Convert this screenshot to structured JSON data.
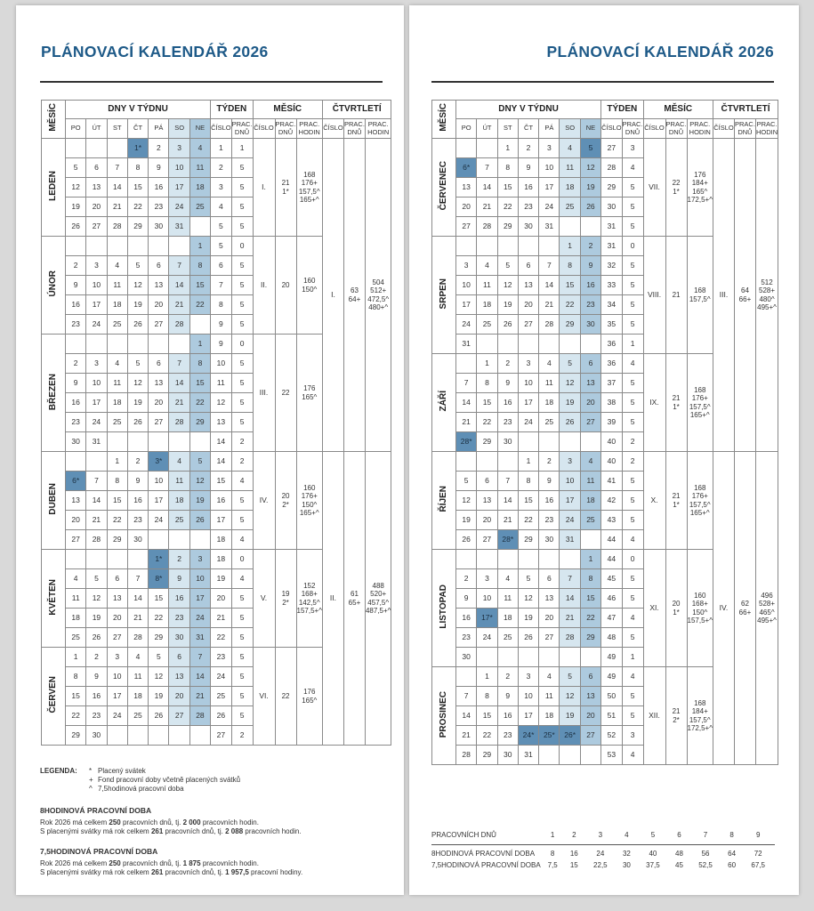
{
  "title": "PLÁNOVACÍ KALENDÁŘ 2026",
  "colors": {
    "title": "#1e5a88",
    "saturday": "#d6e6ef",
    "sunday": "#adcade",
    "holiday": "#5f8fb5"
  },
  "headers": {
    "month": "MĚSÍC",
    "days_of_week": "DNY V TÝDNU",
    "week": "TÝDEN",
    "month_group": "MĚSÍC",
    "quarter": "ČTVRTLETÍ",
    "weekdays": [
      "PO",
      "ÚT",
      "ST",
      "ČT",
      "PÁ",
      "SO",
      "NE"
    ],
    "number": "ČÍSLO",
    "work_days": "PRAC. DNŮ",
    "work_hours": "PRAC. HODIN"
  },
  "months": [
    {
      "name": "LEDEN",
      "number": "I.",
      "workdays": [
        "21",
        "1*"
      ],
      "hours": [
        "168",
        "176+",
        "157,5^",
        "165+^"
      ],
      "holidays": [
        "1*"
      ],
      "weeks": [
        {
          "days": [
            "",
            "",
            "",
            "1*",
            "2",
            "3",
            "4"
          ],
          "week": "1",
          "wd": "1"
        },
        {
          "days": [
            "5",
            "6",
            "7",
            "8",
            "9",
            "10",
            "11"
          ],
          "week": "2",
          "wd": "5"
        },
        {
          "days": [
            "12",
            "13",
            "14",
            "15",
            "16",
            "17",
            "18"
          ],
          "week": "3",
          "wd": "5"
        },
        {
          "days": [
            "19",
            "20",
            "21",
            "22",
            "23",
            "24",
            "25"
          ],
          "week": "4",
          "wd": "5"
        },
        {
          "days": [
            "26",
            "27",
            "28",
            "29",
            "30",
            "31",
            ""
          ],
          "week": "5",
          "wd": "5"
        }
      ]
    },
    {
      "name": "ÚNOR",
      "number": "II.",
      "workdays": [
        "20"
      ],
      "hours": [
        "160",
        "150^"
      ],
      "holidays": [],
      "weeks": [
        {
          "days": [
            "",
            "",
            "",
            "",
            "",
            "",
            "1"
          ],
          "week": "5",
          "wd": "0"
        },
        {
          "days": [
            "2",
            "3",
            "4",
            "5",
            "6",
            "7",
            "8"
          ],
          "week": "6",
          "wd": "5"
        },
        {
          "days": [
            "9",
            "10",
            "11",
            "12",
            "13",
            "14",
            "15"
          ],
          "week": "7",
          "wd": "5"
        },
        {
          "days": [
            "16",
            "17",
            "18",
            "19",
            "20",
            "21",
            "22"
          ],
          "week": "8",
          "wd": "5"
        },
        {
          "days": [
            "23",
            "24",
            "25",
            "26",
            "27",
            "28",
            ""
          ],
          "week": "9",
          "wd": "5"
        }
      ]
    },
    {
      "name": "BŘEZEN",
      "number": "III.",
      "workdays": [
        "22"
      ],
      "hours": [
        "176",
        "165^"
      ],
      "holidays": [],
      "weeks": [
        {
          "days": [
            "",
            "",
            "",
            "",
            "",
            "",
            "1"
          ],
          "week": "9",
          "wd": "0"
        },
        {
          "days": [
            "2",
            "3",
            "4",
            "5",
            "6",
            "7",
            "8"
          ],
          "week": "10",
          "wd": "5"
        },
        {
          "days": [
            "9",
            "10",
            "11",
            "12",
            "13",
            "14",
            "15"
          ],
          "week": "11",
          "wd": "5"
        },
        {
          "days": [
            "16",
            "17",
            "18",
            "19",
            "20",
            "21",
            "22"
          ],
          "week": "12",
          "wd": "5"
        },
        {
          "days": [
            "23",
            "24",
            "25",
            "26",
            "27",
            "28",
            "29"
          ],
          "week": "13",
          "wd": "5"
        },
        {
          "days": [
            "30",
            "31",
            "",
            "",
            "",
            "",
            ""
          ],
          "week": "14",
          "wd": "2"
        }
      ]
    },
    {
      "name": "DUBEN",
      "number": "IV.",
      "workdays": [
        "20",
        "2*"
      ],
      "hours": [
        "160",
        "176+",
        "150^",
        "165+^"
      ],
      "holidays": [
        "3*",
        "6*"
      ],
      "weeks": [
        {
          "days": [
            "",
            "",
            "1",
            "2",
            "3*",
            "4",
            "5"
          ],
          "week": "14",
          "wd": "2"
        },
        {
          "days": [
            "6*",
            "7",
            "8",
            "9",
            "10",
            "11",
            "12"
          ],
          "week": "15",
          "wd": "4"
        },
        {
          "days": [
            "13",
            "14",
            "15",
            "16",
            "17",
            "18",
            "19"
          ],
          "week": "16",
          "wd": "5"
        },
        {
          "days": [
            "20",
            "21",
            "22",
            "23",
            "24",
            "25",
            "26"
          ],
          "week": "17",
          "wd": "5"
        },
        {
          "days": [
            "27",
            "28",
            "29",
            "30",
            "",
            "",
            ""
          ],
          "week": "18",
          "wd": "4"
        }
      ]
    },
    {
      "name": "KVĚTEN",
      "number": "V.",
      "workdays": [
        "19",
        "2*"
      ],
      "hours": [
        "152",
        "168+",
        "142,5^",
        "157,5+^"
      ],
      "holidays": [
        "1*",
        "8*"
      ],
      "weeks": [
        {
          "days": [
            "",
            "",
            "",
            "",
            "1*",
            "2",
            "3"
          ],
          "week": "18",
          "wd": "0"
        },
        {
          "days": [
            "4",
            "5",
            "6",
            "7",
            "8*",
            "9",
            "10"
          ],
          "week": "19",
          "wd": "4"
        },
        {
          "days": [
            "11",
            "12",
            "13",
            "14",
            "15",
            "16",
            "17"
          ],
          "week": "20",
          "wd": "5"
        },
        {
          "days": [
            "18",
            "19",
            "20",
            "21",
            "22",
            "23",
            "24"
          ],
          "week": "21",
          "wd": "5"
        },
        {
          "days": [
            "25",
            "26",
            "27",
            "28",
            "29",
            "30",
            "31"
          ],
          "week": "22",
          "wd": "5"
        }
      ]
    },
    {
      "name": "ČERVEN",
      "number": "VI.",
      "workdays": [
        "22"
      ],
      "hours": [
        "176",
        "165^"
      ],
      "holidays": [],
      "weeks": [
        {
          "days": [
            "1",
            "2",
            "3",
            "4",
            "5",
            "6",
            "7"
          ],
          "week": "23",
          "wd": "5"
        },
        {
          "days": [
            "8",
            "9",
            "10",
            "11",
            "12",
            "13",
            "14"
          ],
          "week": "24",
          "wd": "5"
        },
        {
          "days": [
            "15",
            "16",
            "17",
            "18",
            "19",
            "20",
            "21"
          ],
          "week": "25",
          "wd": "5"
        },
        {
          "days": [
            "22",
            "23",
            "24",
            "25",
            "26",
            "27",
            "28"
          ],
          "week": "26",
          "wd": "5"
        },
        {
          "days": [
            "29",
            "30",
            "",
            "",
            "",
            "",
            ""
          ],
          "week": "27",
          "wd": "2"
        }
      ]
    },
    {
      "name": "ČERVENEC",
      "number": "VII.",
      "workdays": [
        "22",
        "1*"
      ],
      "hours": [
        "176",
        "184+",
        "165^",
        "172,5+^"
      ],
      "holidays": [
        "5",
        "6*"
      ],
      "weeks": [
        {
          "days": [
            "",
            "",
            "1",
            "2",
            "3",
            "4",
            "5"
          ],
          "week": "27",
          "wd": "3"
        },
        {
          "days": [
            "6*",
            "7",
            "8",
            "9",
            "10",
            "11",
            "12"
          ],
          "week": "28",
          "wd": "4"
        },
        {
          "days": [
            "13",
            "14",
            "15",
            "16",
            "17",
            "18",
            "19"
          ],
          "week": "29",
          "wd": "5"
        },
        {
          "days": [
            "20",
            "21",
            "22",
            "23",
            "24",
            "25",
            "26"
          ],
          "week": "30",
          "wd": "5"
        },
        {
          "days": [
            "27",
            "28",
            "29",
            "30",
            "31",
            "",
            ""
          ],
          "week": "31",
          "wd": "5"
        }
      ]
    },
    {
      "name": "SRPEN",
      "number": "VIII.",
      "workdays": [
        "21"
      ],
      "hours": [
        "168",
        "157,5^"
      ],
      "holidays": [],
      "weeks": [
        {
          "days": [
            "",
            "",
            "",
            "",
            "",
            "1",
            "2"
          ],
          "week": "31",
          "wd": "0"
        },
        {
          "days": [
            "3",
            "4",
            "5",
            "6",
            "7",
            "8",
            "9"
          ],
          "week": "32",
          "wd": "5"
        },
        {
          "days": [
            "10",
            "11",
            "12",
            "13",
            "14",
            "15",
            "16"
          ],
          "week": "33",
          "wd": "5"
        },
        {
          "days": [
            "17",
            "18",
            "19",
            "20",
            "21",
            "22",
            "23"
          ],
          "week": "34",
          "wd": "5"
        },
        {
          "days": [
            "24",
            "25",
            "26",
            "27",
            "28",
            "29",
            "30"
          ],
          "week": "35",
          "wd": "5"
        },
        {
          "days": [
            "31",
            "",
            "",
            "",
            "",
            "",
            ""
          ],
          "week": "36",
          "wd": "1"
        }
      ]
    },
    {
      "name": "ZÁŘÍ",
      "number": "IX.",
      "workdays": [
        "21",
        "1*"
      ],
      "hours": [
        "168",
        "176+",
        "157,5^",
        "165+^"
      ],
      "holidays": [
        "28*"
      ],
      "weeks": [
        {
          "days": [
            "",
            "1",
            "2",
            "3",
            "4",
            "5",
            "6"
          ],
          "week": "36",
          "wd": "4"
        },
        {
          "days": [
            "7",
            "8",
            "9",
            "10",
            "11",
            "12",
            "13"
          ],
          "week": "37",
          "wd": "5"
        },
        {
          "days": [
            "14",
            "15",
            "16",
            "17",
            "18",
            "19",
            "20"
          ],
          "week": "38",
          "wd": "5"
        },
        {
          "days": [
            "21",
            "22",
            "23",
            "24",
            "25",
            "26",
            "27"
          ],
          "week": "39",
          "wd": "5"
        },
        {
          "days": [
            "28*",
            "29",
            "30",
            "",
            "",
            "",
            ""
          ],
          "week": "40",
          "wd": "2"
        }
      ]
    },
    {
      "name": "ŘÍJEN",
      "number": "X.",
      "workdays": [
        "21",
        "1*"
      ],
      "hours": [
        "168",
        "176+",
        "157,5^",
        "165+^"
      ],
      "holidays": [
        "28*"
      ],
      "weeks": [
        {
          "days": [
            "",
            "",
            "",
            "1",
            "2",
            "3",
            "4"
          ],
          "week": "40",
          "wd": "2"
        },
        {
          "days": [
            "5",
            "6",
            "7",
            "8",
            "9",
            "10",
            "11"
          ],
          "week": "41",
          "wd": "5"
        },
        {
          "days": [
            "12",
            "13",
            "14",
            "15",
            "16",
            "17",
            "18"
          ],
          "week": "42",
          "wd": "5"
        },
        {
          "days": [
            "19",
            "20",
            "21",
            "22",
            "23",
            "24",
            "25"
          ],
          "week": "43",
          "wd": "5"
        },
        {
          "days": [
            "26",
            "27",
            "28*",
            "29",
            "30",
            "31",
            ""
          ],
          "week": "44",
          "wd": "4"
        }
      ]
    },
    {
      "name": "LISTOPAD",
      "number": "XI.",
      "workdays": [
        "20",
        "1*"
      ],
      "hours": [
        "160",
        "168+",
        "150^",
        "157,5+^"
      ],
      "holidays": [
        "17*"
      ],
      "weeks": [
        {
          "days": [
            "",
            "",
            "",
            "",
            "",
            "",
            "1"
          ],
          "week": "44",
          "wd": "0"
        },
        {
          "days": [
            "2",
            "3",
            "4",
            "5",
            "6",
            "7",
            "8"
          ],
          "week": "45",
          "wd": "5"
        },
        {
          "days": [
            "9",
            "10",
            "11",
            "12",
            "13",
            "14",
            "15"
          ],
          "week": "46",
          "wd": "5"
        },
        {
          "days": [
            "16",
            "17*",
            "18",
            "19",
            "20",
            "21",
            "22"
          ],
          "week": "47",
          "wd": "4"
        },
        {
          "days": [
            "23",
            "24",
            "25",
            "26",
            "27",
            "28",
            "29"
          ],
          "week": "48",
          "wd": "5"
        },
        {
          "days": [
            "30",
            "",
            "",
            "",
            "",
            "",
            ""
          ],
          "week": "49",
          "wd": "1"
        }
      ]
    },
    {
      "name": "PROSINEC",
      "number": "XII.",
      "workdays": [
        "21",
        "2*"
      ],
      "hours": [
        "168",
        "184+",
        "157,5^",
        "172,5+^"
      ],
      "holidays": [
        "24*",
        "25*",
        "26*"
      ],
      "weeks": [
        {
          "days": [
            "",
            "1",
            "2",
            "3",
            "4",
            "5",
            "6"
          ],
          "week": "49",
          "wd": "4"
        },
        {
          "days": [
            "7",
            "8",
            "9",
            "10",
            "11",
            "12",
            "13"
          ],
          "week": "50",
          "wd": "5"
        },
        {
          "days": [
            "14",
            "15",
            "16",
            "17",
            "18",
            "19",
            "20"
          ],
          "week": "51",
          "wd": "5"
        },
        {
          "days": [
            "21",
            "22",
            "23",
            "24*",
            "25*",
            "26*",
            "27"
          ],
          "week": "52",
          "wd": "3"
        },
        {
          "days": [
            "28",
            "29",
            "30",
            "31",
            "",
            "",
            ""
          ],
          "week": "53",
          "wd": "4"
        }
      ]
    }
  ],
  "quarters": [
    {
      "number": "I.",
      "workdays": [
        "63",
        "64+"
      ],
      "hours": [
        "504",
        "512+",
        "472,5^",
        "480+^"
      ]
    },
    {
      "number": "II.",
      "workdays": [
        "61",
        "65+"
      ],
      "hours": [
        "488",
        "520+",
        "457,5^",
        "487,5+^"
      ]
    },
    {
      "number": "III.",
      "workdays": [
        "64",
        "66+"
      ],
      "hours": [
        "512",
        "528+",
        "480^",
        "495+^"
      ]
    },
    {
      "number": "IV.",
      "workdays": [
        "62",
        "66+"
      ],
      "hours": [
        "496",
        "528+",
        "465^",
        "495+^"
      ]
    }
  ],
  "legend": {
    "label": "LEGENDA:",
    "items": [
      {
        "symbol": "*",
        "text": "Placený svátek"
      },
      {
        "symbol": "+",
        "text": "Fond pracovní doby včetně placených svátků"
      },
      {
        "symbol": "^",
        "text": "7,5hodinová pracovní doba"
      }
    ],
    "eight_hour": {
      "heading": "8HODINOVÁ PRACOVNÍ DOBA",
      "line1": [
        "Rok 2026 má celkem ",
        "250",
        " pracovních dnů, tj. ",
        "2 000",
        " pracovních hodin."
      ],
      "line2": [
        "S placenými svátky má rok celkem ",
        "261",
        " pracovních dnů, tj. ",
        "2 088",
        " pracovních hodin."
      ]
    },
    "seven_half_hour": {
      "heading": "7,5HODINOVÁ PRACOVNÍ DOBA",
      "line1": [
        "Rok 2026 má celkem ",
        "250",
        " pracovních dnů, tj. ",
        "1 875",
        " pracovních hodin."
      ],
      "line2": [
        "S placenými svátky má rok celkem ",
        "261",
        " pracovních dnů, tj. ",
        "1 957,5",
        " pracovní hodiny."
      ]
    }
  },
  "conversion": {
    "header": "PRACOVNÍCH DNŮ",
    "days": [
      "1",
      "2",
      "3",
      "4",
      "5",
      "6",
      "7",
      "8",
      "9"
    ],
    "rows": [
      {
        "label": "8HODINOVÁ PRACOVNÍ DOBA",
        "values": [
          "8",
          "16",
          "24",
          "32",
          "40",
          "48",
          "56",
          "64",
          "72"
        ]
      },
      {
        "label": "7,5HODINOVÁ PRACOVNÍ DOBA",
        "values": [
          "7,5",
          "15",
          "22,5",
          "30",
          "37,5",
          "45",
          "52,5",
          "60",
          "67,5"
        ]
      }
    ]
  }
}
